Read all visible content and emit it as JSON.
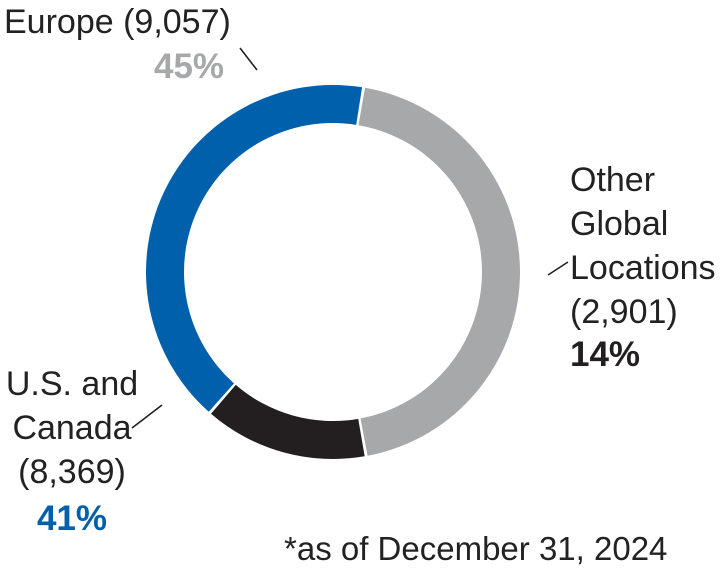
{
  "chart_data": {
    "type": "pie",
    "style": "donut",
    "categories": [
      "Europe",
      "Other Global Locations",
      "U.S. and Canada"
    ],
    "values": [
      9057,
      2901,
      8369
    ],
    "percent_labels": [
      "45%",
      "14%",
      "41%"
    ],
    "colors": [
      "#a7a8aa",
      "#231f20",
      "#0060ac"
    ],
    "start_angle_deg": -80.6,
    "direction": "clockwise"
  },
  "labels": {
    "europe": {
      "name": "Europe",
      "count": "(9,057)",
      "pct": "45%",
      "color": "#a7a8aa"
    },
    "other": {
      "name_line1": "Other",
      "name_line2": "Global",
      "name_line3": "Locations",
      "count": "(2,901)",
      "pct": "14%",
      "color": "#231f20"
    },
    "us": {
      "name_line1": "U.S. and",
      "name_line2": "Canada",
      "count": "(8,369)",
      "pct": "41%",
      "color": "#0060ac"
    }
  },
  "footnote": "*as of December 31, 2024"
}
